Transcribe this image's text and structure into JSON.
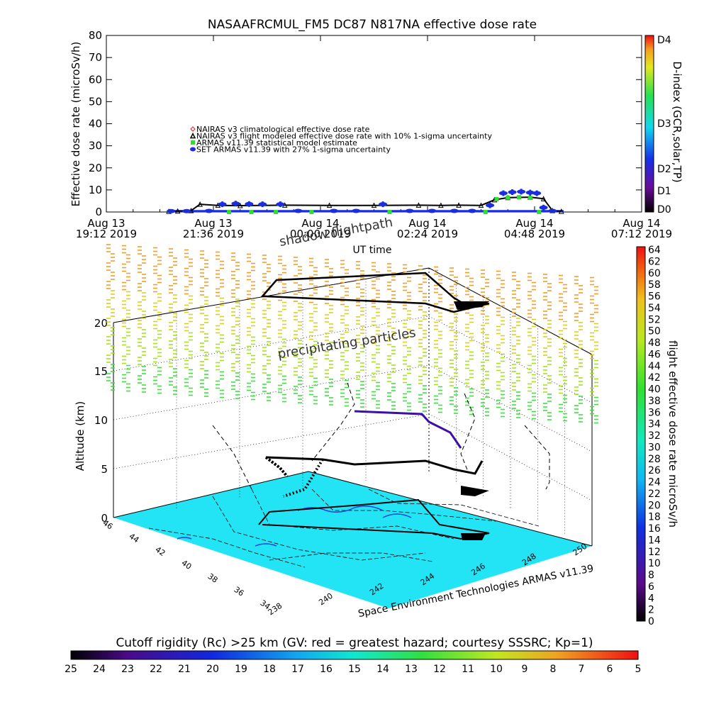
{
  "chart_data": [
    {
      "type": "line",
      "title": "NASAAFRCMUL_FM5 DC87 N817NA effective dose rate",
      "ylabel": "Effective dose rate (microSv/h)",
      "xlabel": "UT time",
      "ylim": [
        0,
        80
      ],
      "yticks": [
        "0",
        "10",
        "20",
        "30",
        "40",
        "50",
        "60",
        "70",
        "80"
      ],
      "xticks": [
        {
          "day": "Aug 13",
          "time": "19:12 2019"
        },
        {
          "day": "Aug 13",
          "time": "21:36 2019"
        },
        {
          "day": "Aug 14",
          "time": "00:00 2019"
        },
        {
          "day": "Aug 14",
          "time": "02:24 2019"
        },
        {
          "day": "Aug 14",
          "time": "04:48 2019"
        },
        {
          "day": "Aug 14",
          "time": "07:12 2019"
        }
      ],
      "x_hours_since_first_tick": [
        0,
        2.4,
        4.8,
        7.2,
        9.6,
        12
      ],
      "legend": [
        {
          "label": "NAIRAS v3 climatological effective dose rate",
          "color": "#cc2222",
          "marker": "diamond"
        },
        {
          "label": "NAIRAS v3 flight modeled effective dose rate with 10% 1-sigma uncertainty",
          "color": "#000000",
          "marker": "triangle"
        },
        {
          "label": "ARMAS v11.39 statistical model estimate",
          "color": "#33dd33",
          "marker": "star"
        },
        {
          "label": "SET ARMAS v11.39 with 27% 1-sigma uncertainty",
          "color": "#1a2ee0",
          "marker": "circle"
        }
      ],
      "series": [
        {
          "name": "NAIRAS v3 flight modeled effective dose rate with 10% 1-sigma uncertainty",
          "x": [
            1.4,
            1.6,
            1.9,
            2.1,
            2.5,
            3.0,
            4.0,
            5.0,
            6.0,
            7.0,
            7.5,
            7.9,
            8.4,
            8.7,
            9.0,
            9.5,
            9.8,
            10.0,
            10.2
          ],
          "y": [
            0.3,
            0.4,
            0.6,
            3.5,
            3.0,
            2.9,
            3.1,
            3.0,
            3.0,
            3.1,
            3.0,
            3.1,
            3.0,
            5.5,
            6.5,
            6.7,
            6.0,
            0.6,
            0.3
          ]
        },
        {
          "name": "SET ARMAS v11.39 with 27% 1-sigma uncertainty",
          "x": [
            1.45,
            1.8,
            2.3,
            2.6,
            2.9,
            3.2,
            3.5,
            3.9,
            4.3,
            5.1,
            5.6,
            6.2,
            6.8,
            7.3,
            7.8,
            8.2,
            8.6,
            8.9,
            9.1,
            9.3,
            9.5,
            9.65,
            9.8,
            10.0
          ],
          "y": [
            0.4,
            0.4,
            0.5,
            3.5,
            3.8,
            3.6,
            3.5,
            3.5,
            0.5,
            0.5,
            0.5,
            3.5,
            0.5,
            0.5,
            0.5,
            0.5,
            3.0,
            8.5,
            9.0,
            9.2,
            8.8,
            8.5,
            2.0,
            0.5
          ]
        },
        {
          "name": "ARMAS v11.39 statistical model estimate",
          "x": [
            2.75,
            3.25,
            3.8,
            4.6,
            6.35,
            8.5,
            8.75,
            9.0,
            9.25,
            9.5,
            9.7
          ],
          "y": [
            0.0,
            0.0,
            0.0,
            0.0,
            0.0,
            0.0,
            5.8,
            6.5,
            6.7,
            6.4,
            0.0
          ]
        }
      ],
      "d_index_colorbar": {
        "label": "D-index (GCR,solar,TP)",
        "ticks": [
          "D0",
          "D1",
          "D2",
          "D3",
          "D4"
        ]
      }
    },
    {
      "type": "scatter",
      "zlabel": "Altitude (km)",
      "zticks": [
        "0",
        "5",
        "10",
        "15",
        "20"
      ],
      "lat_ticks": [
        "46",
        "44",
        "42",
        "40",
        "38",
        "36",
        "34"
      ],
      "lon_ticks": [
        "238",
        "240",
        "242",
        "244",
        "246",
        "248",
        "250"
      ],
      "annotations": [
        "shadow flightpath",
        "precipitating particles"
      ],
      "credit": "Space Environment Technologies ARMAS v11.39",
      "dose_colorbar": {
        "label": "flight effective dose rate microSv/h",
        "ticks": [
          "0",
          "2",
          "4",
          "6",
          "8",
          "10",
          "12",
          "14",
          "16",
          "18",
          "20",
          "22",
          "24",
          "26",
          "28",
          "30",
          "32",
          "34",
          "36",
          "38",
          "40",
          "42",
          "44",
          "46",
          "48",
          "50",
          "52",
          "54",
          "56",
          "58",
          "60",
          "62",
          "64"
        ]
      }
    },
    {
      "type": "heatmap",
      "title": "Cutoff rigidity (Rc) >25 km (GV: red = greatest hazard; courtesy SSSRC; Kp=1)",
      "ticks": [
        "25",
        "24",
        "23",
        "22",
        "21",
        "20",
        "19",
        "18",
        "17",
        "16",
        "15",
        "14",
        "13",
        "12",
        "11",
        "10",
        "9",
        "8",
        "7",
        "6",
        "5"
      ]
    }
  ],
  "colors": {
    "map_fill": "#22e4f5",
    "path": "#000000",
    "cold": "#3a10a8",
    "warm": "#f0a02a"
  }
}
